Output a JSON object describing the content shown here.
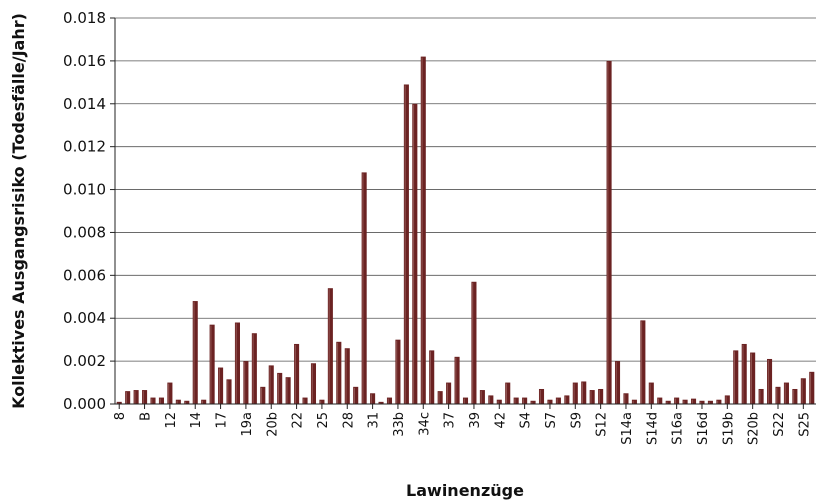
{
  "chart_data": {
    "type": "bar",
    "title": "",
    "xlabel": "Lawinenzüge",
    "ylabel": "Kollektives Ausgangsrisiko (Todesfälle/Jahr)",
    "ylim": [
      0,
      0.018
    ],
    "yticks": [
      "0.000",
      "0.002",
      "0.004",
      "0.006",
      "0.008",
      "0.010",
      "0.012",
      "0.014",
      "0.016",
      "0.018"
    ],
    "grid": "horizontal",
    "bar_color": "#6b2222",
    "bar_highlight": "#b98a84",
    "xtick_labels": [
      {
        "index": 0,
        "label": "8"
      },
      {
        "index": 3,
        "label": "B"
      },
      {
        "index": 6,
        "label": "12"
      },
      {
        "index": 9,
        "label": "14"
      },
      {
        "index": 12,
        "label": "17"
      },
      {
        "index": 15,
        "label": "19a"
      },
      {
        "index": 18,
        "label": "20b"
      },
      {
        "index": 21,
        "label": "22"
      },
      {
        "index": 24,
        "label": "25"
      },
      {
        "index": 27,
        "label": "28"
      },
      {
        "index": 30,
        "label": "31"
      },
      {
        "index": 33,
        "label": "33b"
      },
      {
        "index": 36,
        "label": "34c"
      },
      {
        "index": 39,
        "label": "37"
      },
      {
        "index": 42,
        "label": "39"
      },
      {
        "index": 45,
        "label": "42"
      },
      {
        "index": 48,
        "label": "S4"
      },
      {
        "index": 51,
        "label": "S7"
      },
      {
        "index": 54,
        "label": "S9"
      },
      {
        "index": 57,
        "label": "S12"
      },
      {
        "index": 60,
        "label": "S14a"
      },
      {
        "index": 63,
        "label": "S14d"
      },
      {
        "index": 66,
        "label": "S16a"
      },
      {
        "index": 69,
        "label": "S16d"
      },
      {
        "index": 72,
        "label": "S19b"
      },
      {
        "index": 75,
        "label": "S20b"
      },
      {
        "index": 78,
        "label": "S22"
      },
      {
        "index": 81,
        "label": "S25"
      }
    ],
    "values": [
      0.0001,
      0.0006,
      0.00065,
      0.00065,
      0.0003,
      0.0003,
      0.001,
      0.0002,
      0.00015,
      0.0048,
      0.0002,
      0.0037,
      0.0017,
      0.00115,
      0.0038,
      0.002,
      0.0033,
      0.0008,
      0.0018,
      0.00145,
      0.00125,
      0.0028,
      0.0003,
      0.0019,
      0.0002,
      0.0054,
      0.0029,
      0.0026,
      0.0008,
      0.0108,
      0.0005,
      0.0001,
      0.0003,
      0.003,
      0.0149,
      0.014,
      0.0162,
      0.0025,
      0.0006,
      0.001,
      0.0022,
      0.0003,
      0.0057,
      0.00065,
      0.0004,
      0.0002,
      0.001,
      0.0003,
      0.0003,
      0.00015,
      0.0007,
      0.0002,
      0.0003,
      0.0004,
      0.001,
      0.00105,
      0.00065,
      0.0007,
      0.016,
      0.002,
      0.0005,
      0.0002,
      0.0039,
      0.001,
      0.0003,
      0.00015,
      0.0003,
      0.0002,
      0.00025,
      0.00015,
      0.00015,
      0.0002,
      0.0004,
      0.0025,
      0.0028,
      0.0024,
      0.0007,
      0.0021,
      0.0008,
      0.001,
      0.0007,
      0.0012,
      0.0015
    ]
  }
}
